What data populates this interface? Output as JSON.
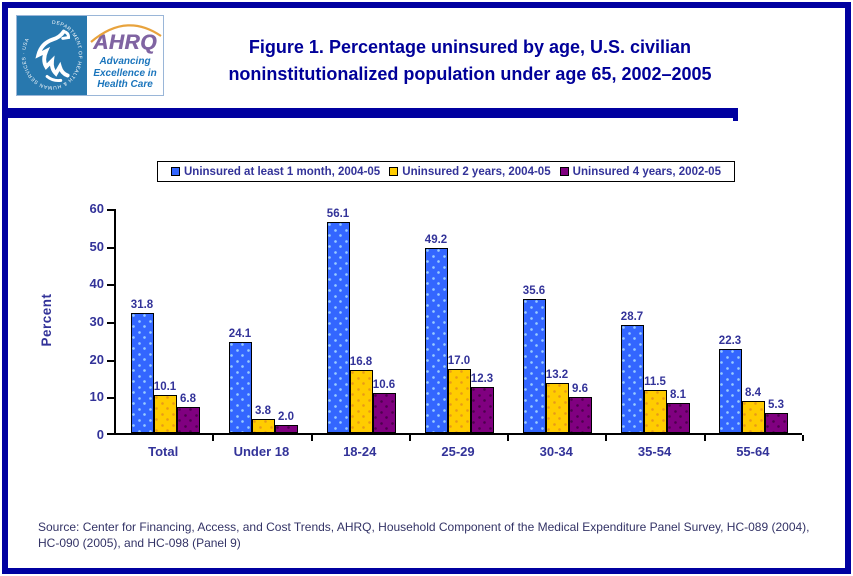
{
  "page": {
    "background": "#FFFFFF",
    "border_color": "#0000A0",
    "accent_navy": "#000099"
  },
  "header": {
    "title": "Figure 1. Percentage uninsured by age, U.S. civilian noninstitutionalized population under age 65, 2002–2005",
    "logo": {
      "seal_text": "DEPARTMENT OF HEALTH & HUMAN SERVICES · USA",
      "ahrq": "AHRQ",
      "tagline_lines": [
        "Advancing",
        "Excellence in",
        "Health Care"
      ]
    }
  },
  "chart_data": {
    "type": "bar",
    "title": "",
    "xlabel": "",
    "ylabel": "Percent",
    "ylim": [
      0,
      60
    ],
    "ytick_step": 10,
    "grid": false,
    "legend_position": "top",
    "bar_value_labels": true,
    "value_label_decimals": 1,
    "categories": [
      "Total",
      "Under 18",
      "18-24",
      "25-29",
      "30-34",
      "35-54",
      "55-64"
    ],
    "series": [
      {
        "name": "Uninsured at least 1 month, 2004-05",
        "color": "#3366FF",
        "dot_color": "#99CCFF",
        "values": [
          31.8,
          24.1,
          56.1,
          49.2,
          35.6,
          28.7,
          22.3
        ]
      },
      {
        "name": "Uninsured 2 years, 2004-05",
        "color": "#FFCC00",
        "dot_color": "#E89A17",
        "values": [
          10.1,
          3.8,
          16.8,
          17.0,
          13.2,
          11.5,
          8.4
        ]
      },
      {
        "name": "Uninsured 4 years, 2002-05",
        "color": "#800080",
        "dot_color": "#4D004D",
        "values": [
          6.8,
          2.0,
          10.6,
          12.3,
          9.6,
          8.1,
          5.3
        ]
      }
    ]
  },
  "source": {
    "text": "Source: Center for Financing, Access, and Cost Trends, AHRQ, Household Component of the Medical Expenditure Panel Survey, HC-089 (2004), HC-090 (2005), and HC-098 (Panel 9)"
  }
}
